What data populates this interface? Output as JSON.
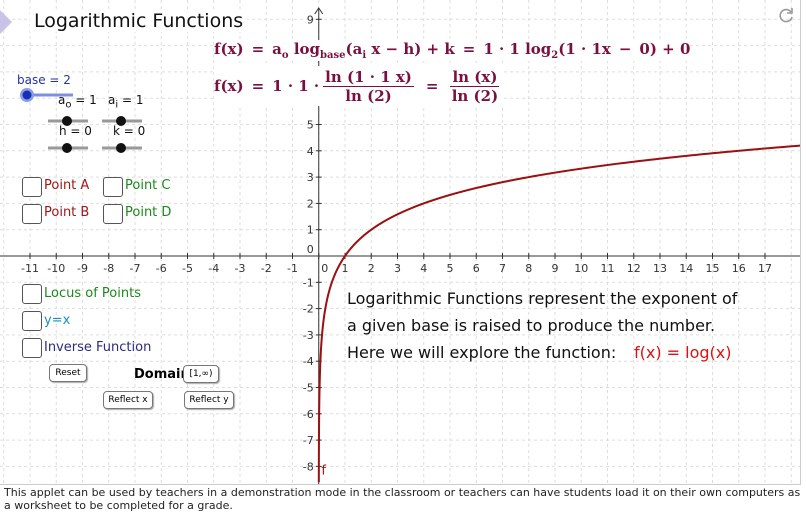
{
  "header": {
    "title": "Logarithmic Functions"
  },
  "formula1": [
    "f(x)",
    "=",
    "a",
    "o",
    "log",
    "base",
    "(a",
    "i",
    "x − h) + k",
    "=",
    "1 · 1 log",
    "2",
    "(1 · 1x",
    "−",
    "0) + 0"
  ],
  "formula2": [
    "f(x)",
    "=",
    "1 · 1 ·",
    "ln (1 · 1 x)",
    "ln (2)",
    "=",
    "ln (x)",
    "ln (2)"
  ],
  "sliders": {
    "base": "base = 2",
    "a_o": [
      "a",
      "o",
      " = 1"
    ],
    "a_i": [
      "a",
      "i",
      " = 1"
    ],
    "h": "h = 0",
    "k": "k = 0"
  },
  "checkboxes": [
    "Point A",
    "Point C",
    "Point B",
    "Point D",
    "Locus of Points",
    "y=x",
    "Inverse Function"
  ],
  "buttons": {
    "reset": "Reset",
    "reflect_x": "Reflect x",
    "reflect_y": "Reflect y"
  },
  "domain": {
    "label": "Domain",
    "input": "[1,∞)"
  },
  "graph": {
    "xticks": [
      -11,
      -10,
      -9,
      -8,
      -7,
      -6,
      -5,
      -4,
      -3,
      -2,
      -1,
      0,
      1,
      2,
      3,
      4,
      5,
      6,
      7,
      8,
      9,
      10,
      11,
      12,
      13,
      14,
      15,
      16,
      17
    ],
    "yticks": [
      -8,
      -7,
      -6,
      -5,
      -4,
      -3,
      -2,
      -1,
      0,
      1,
      2,
      3,
      4,
      5,
      9
    ],
    "curve_label": "f"
  },
  "description": [
    "Logarithmic Functions represent the exponent of",
    "a given base is raised to produce the number.",
    "Here we will explore the function:",
    "f(x) = log(x)"
  ],
  "caption": "This applet can be used by teachers in a demonstration mode in the classroom or teachers can have students load it on their own computers as a worksheet to be completed for a grade."
}
